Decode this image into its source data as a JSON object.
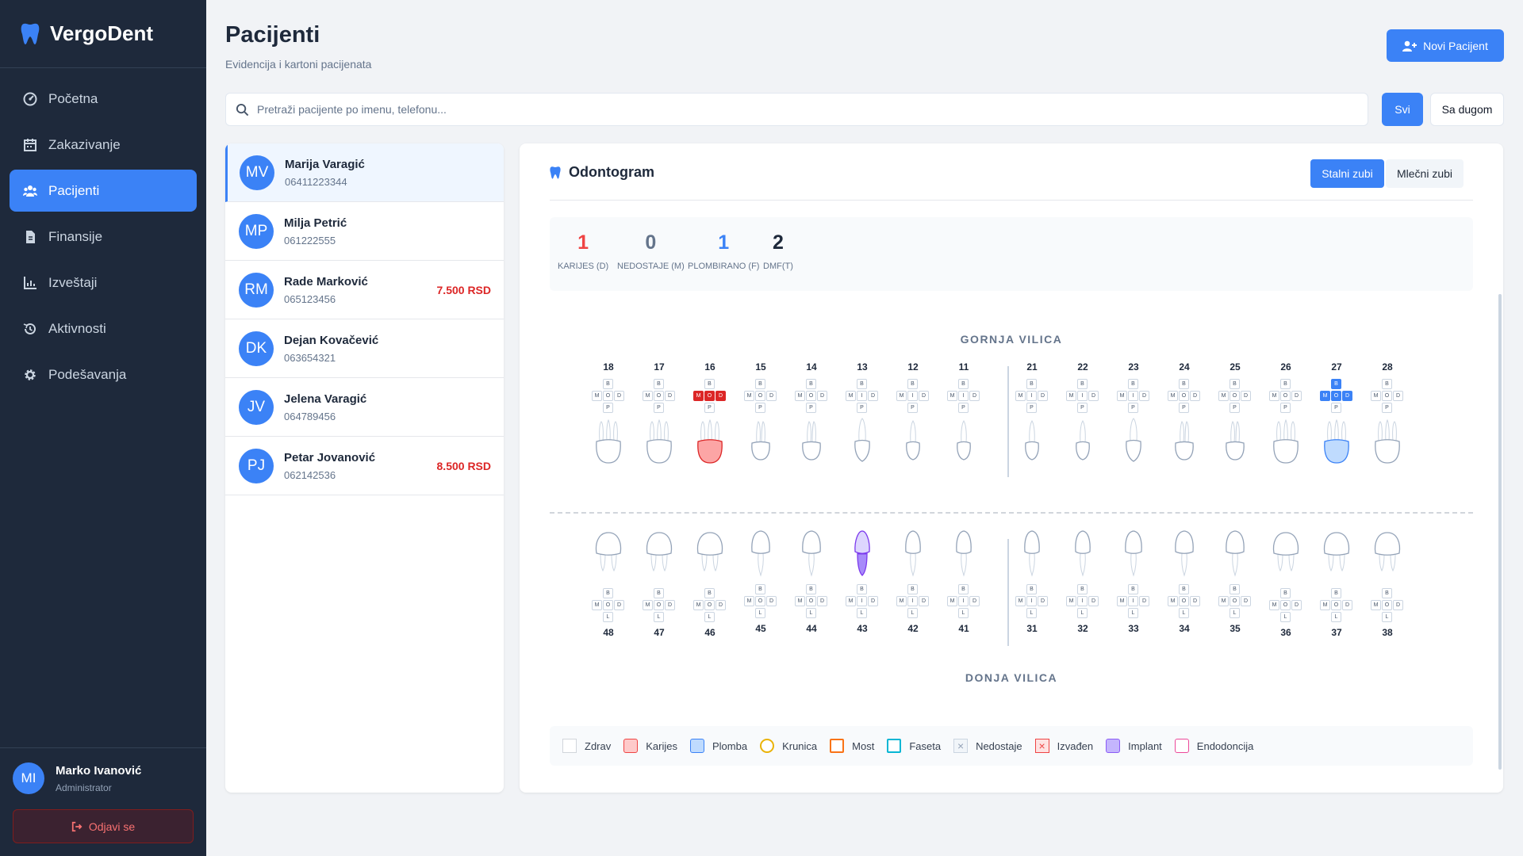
{
  "app": {
    "name": "VergoDent"
  },
  "nav": [
    {
      "label": "Početna",
      "icon": "dashboard-icon",
      "active": false
    },
    {
      "label": "Zakazivanje",
      "icon": "calendar-icon",
      "active": false
    },
    {
      "label": "Pacijenti",
      "icon": "users-icon",
      "active": true
    },
    {
      "label": "Finansije",
      "icon": "invoice-icon",
      "active": false
    },
    {
      "label": "Izveštaji",
      "icon": "chart-icon",
      "active": false
    },
    {
      "label": "Aktivnosti",
      "icon": "history-icon",
      "active": false
    },
    {
      "label": "Podešavanja",
      "icon": "gear-icon",
      "active": false
    }
  ],
  "user": {
    "initials": "MI",
    "name": "Marko Ivanović",
    "role": "Administrator",
    "logout_label": "Odjavi se"
  },
  "header": {
    "title": "Pacijenti",
    "subtitle": "Evidencija i kartoni pacijenata",
    "new_button": "Novi Pacijent"
  },
  "search": {
    "placeholder": "Pretraži pacijente po imenu, telefonu...",
    "value": ""
  },
  "filters": {
    "all": "Svi",
    "with_debt": "Sa dugom",
    "active": "Svi"
  },
  "patients": [
    {
      "initials": "MV",
      "name": "Marija Varagić",
      "phone": "06411223344",
      "debt": "",
      "selected": true
    },
    {
      "initials": "MP",
      "name": "Milja Petrić",
      "phone": "061222555",
      "debt": "",
      "selected": false
    },
    {
      "initials": "RM",
      "name": "Rade Marković",
      "phone": "065123456",
      "debt": "7.500 RSD",
      "selected": false
    },
    {
      "initials": "DK",
      "name": "Dejan Kovačević",
      "phone": "063654321",
      "debt": "",
      "selected": false
    },
    {
      "initials": "JV",
      "name": "Jelena Varagić",
      "phone": "064789456",
      "debt": "",
      "selected": false
    },
    {
      "initials": "PJ",
      "name": "Petar Jovanović",
      "phone": "062142536",
      "debt": "8.500 RSD",
      "selected": false
    }
  ],
  "odontogram": {
    "title": "Odontogram",
    "tabs": {
      "permanent": "Stalni zubi",
      "milk": "Mlečni zubi",
      "active": "permanent"
    },
    "stats": [
      {
        "value": "1",
        "label": "KARIJES (D)",
        "color": "#ef4444"
      },
      {
        "value": "0",
        "label": "NEDOSTAJE (M)",
        "color": "#64748b"
      },
      {
        "value": "1",
        "label": "PLOMBIRANO (F)",
        "color": "#3b82f6"
      },
      {
        "value": "2",
        "label": "DMF(T)",
        "color": "#1e293b"
      }
    ],
    "upper_label": "GORNJA VILICA",
    "lower_label": "DONJA VILICA",
    "upper_teeth": [
      {
        "num": "18",
        "kind": "molar",
        "mid": "O",
        "status": "healthy",
        "surfaces": {}
      },
      {
        "num": "17",
        "kind": "molar",
        "mid": "O",
        "status": "healthy",
        "surfaces": {}
      },
      {
        "num": "16",
        "kind": "molar",
        "mid": "O",
        "status": "caries",
        "surfaces": {
          "M": "car",
          "O": "car",
          "D": "car"
        }
      },
      {
        "num": "15",
        "kind": "premolar",
        "mid": "O",
        "status": "healthy",
        "surfaces": {}
      },
      {
        "num": "14",
        "kind": "premolar",
        "mid": "O",
        "status": "healthy",
        "surfaces": {}
      },
      {
        "num": "13",
        "kind": "canine",
        "mid": "I",
        "status": "healthy",
        "surfaces": {}
      },
      {
        "num": "12",
        "kind": "incisor",
        "mid": "I",
        "status": "healthy",
        "surfaces": {}
      },
      {
        "num": "11",
        "kind": "incisor",
        "mid": "I",
        "status": "healthy",
        "surfaces": {}
      },
      {
        "num": "21",
        "kind": "incisor",
        "mid": "I",
        "status": "healthy",
        "surfaces": {}
      },
      {
        "num": "22",
        "kind": "incisor",
        "mid": "I",
        "status": "healthy",
        "surfaces": {}
      },
      {
        "num": "23",
        "kind": "canine",
        "mid": "I",
        "status": "healthy",
        "surfaces": {}
      },
      {
        "num": "24",
        "kind": "premolar",
        "mid": "O",
        "status": "healthy",
        "surfaces": {}
      },
      {
        "num": "25",
        "kind": "premolar",
        "mid": "O",
        "status": "healthy",
        "surfaces": {}
      },
      {
        "num": "26",
        "kind": "molar",
        "mid": "O",
        "status": "healthy",
        "surfaces": {}
      },
      {
        "num": "27",
        "kind": "molar",
        "mid": "O",
        "status": "filling",
        "surfaces": {
          "B": "fill",
          "M": "fill",
          "O": "fill",
          "D": "fill"
        }
      },
      {
        "num": "28",
        "kind": "molar",
        "mid": "O",
        "status": "healthy",
        "surfaces": {}
      }
    ],
    "lower_teeth": [
      {
        "num": "48",
        "kind": "molar",
        "mid": "O",
        "status": "healthy",
        "surfaces": {}
      },
      {
        "num": "47",
        "kind": "molar",
        "mid": "O",
        "status": "healthy",
        "surfaces": {}
      },
      {
        "num": "46",
        "kind": "molar",
        "mid": "O",
        "status": "healthy",
        "surfaces": {}
      },
      {
        "num": "45",
        "kind": "premolar",
        "mid": "O",
        "status": "healthy",
        "surfaces": {}
      },
      {
        "num": "44",
        "kind": "premolar",
        "mid": "O",
        "status": "healthy",
        "surfaces": {}
      },
      {
        "num": "43",
        "kind": "canine",
        "mid": "I",
        "status": "implant",
        "surfaces": {}
      },
      {
        "num": "42",
        "kind": "incisor",
        "mid": "I",
        "status": "healthy",
        "surfaces": {}
      },
      {
        "num": "41",
        "kind": "incisor",
        "mid": "I",
        "status": "healthy",
        "surfaces": {}
      },
      {
        "num": "31",
        "kind": "incisor",
        "mid": "I",
        "status": "healthy",
        "surfaces": {}
      },
      {
        "num": "32",
        "kind": "incisor",
        "mid": "I",
        "status": "healthy",
        "surfaces": {}
      },
      {
        "num": "33",
        "kind": "canine",
        "mid": "I",
        "status": "healthy",
        "surfaces": {}
      },
      {
        "num": "34",
        "kind": "premolar",
        "mid": "O",
        "status": "healthy",
        "surfaces": {}
      },
      {
        "num": "35",
        "kind": "premolar",
        "mid": "O",
        "status": "healthy",
        "surfaces": {}
      },
      {
        "num": "36",
        "kind": "molar",
        "mid": "O",
        "status": "healthy",
        "surfaces": {}
      },
      {
        "num": "37",
        "kind": "molar",
        "mid": "O",
        "status": "healthy",
        "surfaces": {}
      },
      {
        "num": "38",
        "kind": "molar",
        "mid": "O",
        "status": "healthy",
        "surfaces": {}
      }
    ],
    "legend": [
      {
        "label": "Zdrav",
        "style": "healthy"
      },
      {
        "label": "Karijes",
        "style": "caries"
      },
      {
        "label": "Plomba",
        "style": "filling"
      },
      {
        "label": "Krunica",
        "style": "crown"
      },
      {
        "label": "Most",
        "style": "bridge"
      },
      {
        "label": "Faseta",
        "style": "veneer"
      },
      {
        "label": "Nedostaje",
        "style": "missing"
      },
      {
        "label": "Izvađen",
        "style": "extracted"
      },
      {
        "label": "Implant",
        "style": "implant"
      },
      {
        "label": "Endodoncija",
        "style": "endo"
      }
    ]
  },
  "colors": {
    "accent": "#3b82f6",
    "sidebar": "#1e293b",
    "danger": "#dc2626",
    "implant": "#a78bfa",
    "caries_fill": "#fca5a5",
    "filling_fill": "#bfdbfe"
  }
}
